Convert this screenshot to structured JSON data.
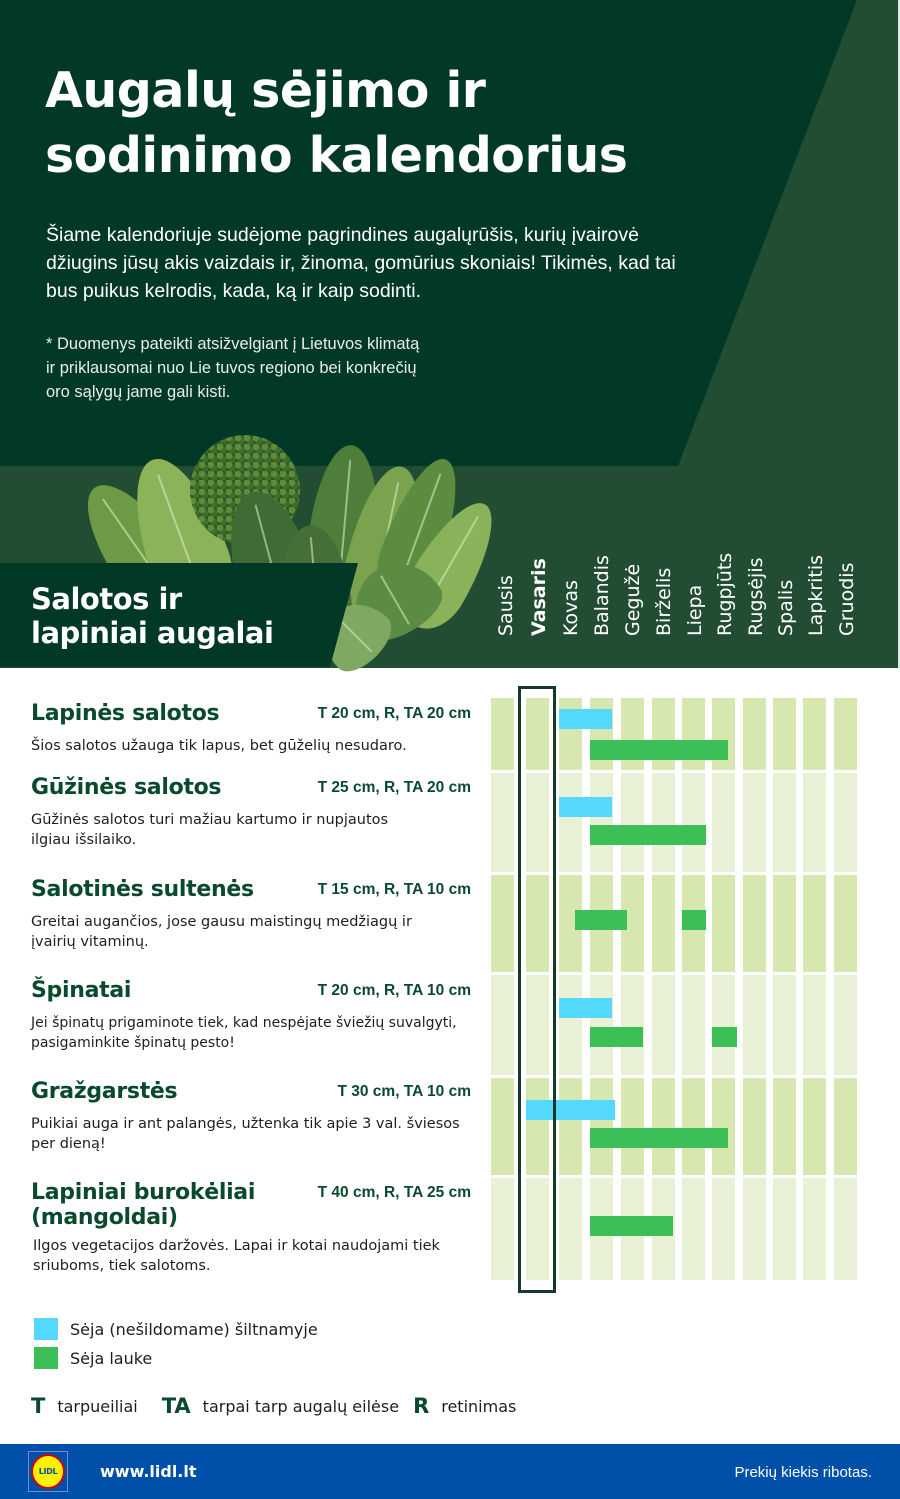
{
  "header": {
    "title_line1": "Augalų sėjimo ir",
    "title_line2": "sodinimo kalendorius",
    "intro": "Šiame kalendoriuje sudėjome pagrindines augalųrūšis, kurių įvairovė džiugins jūsų akis vaizdais ir, žinoma, gomūrius skoniais! Tikimės, kad tai bus puikus kelrodis, kada, ką ir kaip sodinti.",
    "note_line1": "* Duomenys pateikti atsižvelgiant į Lietuvos klimatą",
    "note_line2": "ir priklausomai nuo Lie tuvos regiono bei konkrečių",
    "note_line3": "oro sąlygų jame gali kisti."
  },
  "section": {
    "title_line1": "Salotos ir",
    "title_line2": "lapiniai augalai"
  },
  "months": [
    "Sausis",
    "Vasaris",
    "Kovas",
    "Balandis",
    "Gegužė",
    "Birželis",
    "Liepa",
    "Rugpjūts",
    "Rugsėjis",
    "Spalis",
    "Lapkritis",
    "Gruodis"
  ],
  "highlighted_month_index": 1,
  "plants": [
    {
      "name": "Lapinės salotos",
      "spacing": "T 20 cm, R, TA 20 cm",
      "description": "Šios salotos užauga tik lapus, bet gūželių nesudaro."
    },
    {
      "name": "Gūžinės salotos",
      "spacing": "T 25 cm, R, TA 20 cm",
      "description": "Gūžinės salotos turi mažiau kartumo ir nupjautos ilgiau išsilaiko."
    },
    {
      "name": "Salotinės sultenės",
      "spacing": "T 15 cm, R, TA 10 cm",
      "description": "Greitai augančios, jose gausu maistingų medžiagų ir įvairių vitaminų."
    },
    {
      "name": "Špinatai",
      "spacing": "T 20 cm, R, TA 10 cm",
      "description": "Jei špinatų prigaminote tiek, kad nespėjate šviežių suvalgyti, pasigaminkite špinatų pesto!"
    },
    {
      "name": "Gražgarstės",
      "spacing": "T 30 cm, TA 10 cm",
      "description": "Puikiai auga ir ant palangės, užtenka tik apie 3 val. šviesos per dieną!"
    },
    {
      "name": "Lapiniai burokėliai (mangoldai)",
      "spacing": "T 40 cm, R, TA 25 cm",
      "description": "Ilgos vegetacijos daržovės. Lapai ir kotai naudojami tiek sriuboms, tiek salotoms."
    }
  ],
  "legend": {
    "greenhouse": {
      "label": "Sėja (nešildomame) šiltnamyje",
      "color": "#55d8fe"
    },
    "outdoor": {
      "label": "Sėja lauke",
      "color": "#3dbf57"
    }
  },
  "abbreviations": [
    {
      "abbr": "T",
      "label": "tarpueiliai"
    },
    {
      "abbr": "TA",
      "label": "tarpai tarp augalų eilėse"
    },
    {
      "abbr": "R",
      "label": "retinimas"
    }
  ],
  "footer": {
    "logo_text": "LIDL",
    "url": "www.lidl.lt",
    "note": "Prekių kiekis ribotas."
  },
  "colors": {
    "dark_green": "#013826",
    "mid_green": "#224d33",
    "text_green": "#0a4a2c",
    "cell_dark": "#d6e7b0",
    "cell_light": "#e8f1d6",
    "footer_blue": "#0050aa"
  },
  "chart_data": {
    "type": "gantt",
    "title": "Salotos ir lapiniai augalai",
    "categories": [
      "Sausis",
      "Vasaris",
      "Kovas",
      "Balandis",
      "Gegužė",
      "Birželis",
      "Liepa",
      "Rugpjūts",
      "Rugsėjis",
      "Spalis",
      "Lapkritis",
      "Gruodis"
    ],
    "series": [
      {
        "name": "Sėja (nešildomame) šiltnamyje",
        "color": "#55d8fe"
      },
      {
        "name": "Sėja lauke",
        "color": "#3dbf57"
      }
    ],
    "rows": [
      {
        "plant": "Lapinės salotos",
        "greenhouse": [
          [
            3.0,
            4.7
          ]
        ],
        "outdoor": [
          [
            4.0,
            8.5
          ]
        ]
      },
      {
        "plant": "Gūžinės salotos",
        "greenhouse": [
          [
            3.0,
            4.7
          ]
        ],
        "outdoor": [
          [
            4.0,
            7.8
          ]
        ]
      },
      {
        "plant": "Salotinės sultenės",
        "greenhouse": [],
        "outdoor": [
          [
            3.5,
            5.2
          ],
          [
            7.0,
            7.8
          ]
        ]
      },
      {
        "plant": "Špinatai",
        "greenhouse": [
          [
            3.0,
            4.7
          ]
        ],
        "outdoor": [
          [
            4.0,
            5.7
          ],
          [
            8.0,
            8.8
          ]
        ]
      },
      {
        "plant": "Gražgarstės",
        "greenhouse": [
          [
            2.0,
            4.8
          ]
        ],
        "outdoor": [
          [
            4.0,
            8.5
          ]
        ]
      },
      {
        "plant": "Lapiniai burokėliai (mangoldai)",
        "greenhouse": [],
        "outdoor": [
          [
            4.0,
            6.7
          ]
        ]
      }
    ],
    "highlighted_month": "Vasaris",
    "note": "Month values are 1-based positions (1=Sausis); fractional parts indicate partial-month coverage."
  }
}
